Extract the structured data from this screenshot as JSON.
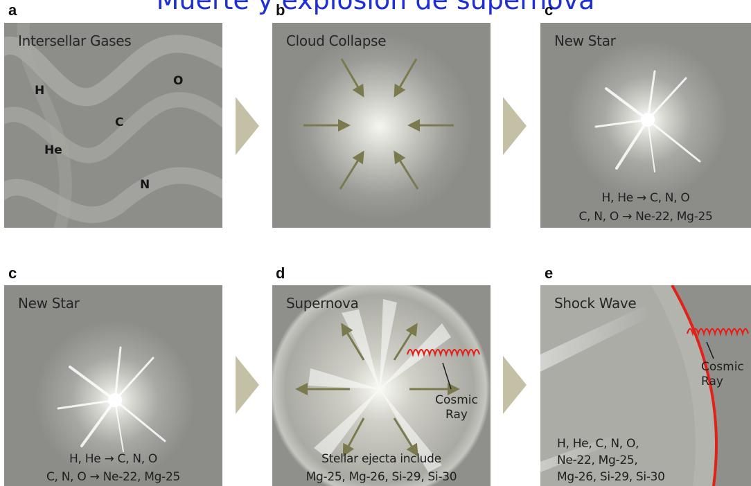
{
  "title": "Muerte y explosión de supernova",
  "panels": {
    "a": {
      "letter": "a",
      "title": "Intersellar Gases",
      "elements": {
        "h": "H",
        "o": "O",
        "c": "C",
        "he": "He",
        "n": "N"
      }
    },
    "b": {
      "letter": "b",
      "title": "Cloud Collapse"
    },
    "c1": {
      "letter": "c",
      "title": "New Star",
      "reaction1": "H, He → C, N, O",
      "reaction2": "C, N, O → Ne-22, Mg-25"
    },
    "c2": {
      "letter": "c",
      "title": "New Star",
      "reaction1": "H, He → C, N, O",
      "reaction2": "C, N, O → Ne-22, Mg-25"
    },
    "d": {
      "letter": "d",
      "title": "Supernova",
      "cosmic_ray": "Cosmic Ray",
      "ejecta1": "Stellar ejecta include",
      "ejecta2": "Mg-25, Mg-26, Si-29, Si-30"
    },
    "e": {
      "letter": "e",
      "title": "Shock Wave",
      "cosmic_ray": "Cosmic Ray",
      "list1": "H, He, C, N, O,",
      "list2": "Ne-22, Mg-25,",
      "list3": "Mg-26, Si-29, Si-30"
    }
  },
  "colors": {
    "title": "#1f2fd6",
    "arrow": "#7a7a4e",
    "transition_arrow": "#c3c0a5",
    "cosmic_ray": "#e0221a",
    "panel_bg": "#8a8a87"
  }
}
